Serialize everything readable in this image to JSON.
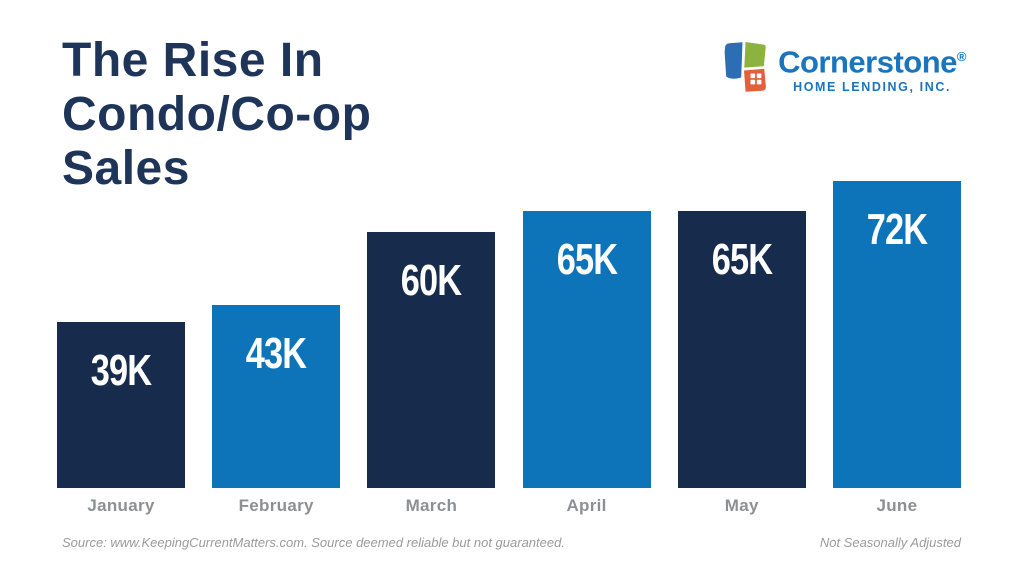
{
  "page": {
    "title_lines": [
      "The Rise In",
      "Condo/Co-op",
      "Sales"
    ]
  },
  "logo": {
    "brand": "Cornerstone",
    "registered": "®",
    "subtitle": "HOME LENDING, INC."
  },
  "chart_data": {
    "type": "bar",
    "title": "The Rise In Condo/Co-op Sales",
    "categories": [
      "January",
      "February",
      "March",
      "April",
      "May",
      "June"
    ],
    "values": [
      39,
      43,
      60,
      65,
      65,
      72
    ],
    "value_labels": [
      "39K",
      "43K",
      "60K",
      "65K",
      "65K",
      "72K"
    ],
    "bar_colors": [
      "#172b4d",
      "#0d74ba",
      "#172b4d",
      "#0d74ba",
      "#172b4d",
      "#0d74ba"
    ],
    "xlabel": "",
    "ylabel": "",
    "ylim": [
      0,
      72
    ],
    "grid": false,
    "legend": false,
    "value_label_position": "inside-top",
    "value_label_color": "#ffffff"
  },
  "footer": {
    "source": "Source: www.KeepingCurrentMatters.com. Source deemed reliable but not guaranteed.",
    "note": "Not Seasonally Adjusted"
  },
  "colors": {
    "navy": "#172b4d",
    "blue": "#0d74ba",
    "title_navy": "#1e3458",
    "category_gray": "#8d9093",
    "source_gray": "#9b9b9b",
    "logo_blue": "#1a75bc",
    "logo_icon_blue": "#2d6db4",
    "logo_icon_green": "#8cb23f",
    "logo_icon_orange": "#e2603c"
  }
}
